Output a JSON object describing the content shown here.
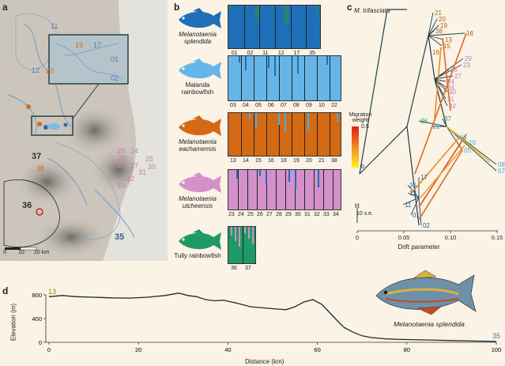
{
  "panels": {
    "a": "a",
    "b": "b",
    "c": "c",
    "d": "d"
  },
  "map": {
    "scale_ticks": [
      "0",
      "10",
      "20 km"
    ],
    "site_labels": [
      {
        "text": "11",
        "color": "#4a7fb5"
      },
      {
        "text": "12",
        "color": "#4a7fb5"
      },
      {
        "text": "20",
        "color": "#d06a1c"
      },
      {
        "text": "37",
        "color": "#333333"
      },
      {
        "text": "36",
        "color": "#333333"
      },
      {
        "text": "35",
        "color": "#3a5f86"
      },
      {
        "text": "29",
        "color": "#c779b5"
      },
      {
        "text": "24",
        "color": "#c779b5"
      },
      {
        "text": "26",
        "color": "#c779b5"
      },
      {
        "text": "25",
        "color": "#c779b5"
      },
      {
        "text": "28",
        "color": "#c779b5"
      },
      {
        "text": "27",
        "color": "#c779b5"
      },
      {
        "text": "30",
        "color": "#c779b5"
      },
      {
        "text": "31",
        "color": "#c779b5"
      },
      {
        "text": "32",
        "color": "#c779b5"
      },
      {
        "text": "33",
        "color": "#c779b5"
      },
      {
        "text": "38",
        "color": "#d06a1c"
      }
    ],
    "inset_labels": [
      {
        "text": "19",
        "color": "#d06a1c"
      },
      {
        "text": "17",
        "color": "#4a7fb5"
      },
      {
        "text": "01",
        "color": "#4a7fb5"
      },
      {
        "text": "02",
        "color": "#4a7fb5"
      }
    ]
  },
  "species": [
    {
      "name": "Melanotaenia splendida",
      "italic": true,
      "color": "#1f6fb8",
      "ticks": [
        "01",
        "02",
        "11",
        "12",
        "17",
        "35"
      ]
    },
    {
      "name": "Malanda rainbowfish",
      "italic": false,
      "color": "#66b5e8",
      "ticks": [
        "03",
        "04",
        "05",
        "06",
        "07",
        "08",
        "09",
        "10",
        "22"
      ]
    },
    {
      "name": "Melanotaenia eachamensis",
      "italic": true,
      "color": "#d46a14",
      "ticks": [
        "13",
        "14",
        "15",
        "16",
        "18",
        "19",
        "20",
        "21",
        "38"
      ]
    },
    {
      "name": "Melanotaenia utcheensis",
      "italic": true,
      "color": "#d490c8",
      "ticks": [
        "23",
        "24",
        "25",
        "26",
        "27",
        "28",
        "29",
        "30",
        "31",
        "32",
        "33",
        "34"
      ]
    },
    {
      "name": "Tully rainbowfish",
      "italic": false,
      "color": "#1e9a66",
      "ticks": [
        "36",
        "37"
      ]
    }
  ],
  "tree": {
    "outgroup": "M. trifasciata",
    "migration_title": "Migration weight",
    "migration_max": "0.5",
    "migration_min": "0",
    "drift_label": "H",
    "se_label": "10 s.e.",
    "xlabel": "Drift parameter",
    "xticks": [
      "0",
      "0.05",
      "0.10",
      "0.15"
    ],
    "tips": [
      {
        "text": "21",
        "color": "#c06010"
      },
      {
        "text": "20",
        "color": "#c06010"
      },
      {
        "text": "19",
        "color": "#c06010"
      },
      {
        "text": "38",
        "color": "#c06010"
      },
      {
        "text": "18",
        "color": "#c06010"
      },
      {
        "text": "13",
        "color": "#c06010"
      },
      {
        "text": "15",
        "color": "#c06010"
      },
      {
        "text": "16",
        "color": "#c06010"
      },
      {
        "text": "29",
        "color": "#c779b5"
      },
      {
        "text": "23",
        "color": "#c779b5"
      },
      {
        "text": "26",
        "color": "#c779b5"
      },
      {
        "text": "27",
        "color": "#c779b5"
      },
      {
        "text": "24",
        "color": "#c779b5"
      },
      {
        "text": "34",
        "color": "#c779b5"
      },
      {
        "text": "30",
        "color": "#c779b5"
      },
      {
        "text": "31",
        "color": "#c779b5"
      },
      {
        "text": "32",
        "color": "#c779b5"
      },
      {
        "text": "37",
        "color": "#1e9a66"
      },
      {
        "text": "36",
        "color": "#1e9a66"
      },
      {
        "text": "22",
        "color": "#4aa5d8"
      },
      {
        "text": "04",
        "color": "#4aa5d8"
      },
      {
        "text": "10",
        "color": "#4aa5d8"
      },
      {
        "text": "05",
        "color": "#4aa5d8"
      },
      {
        "text": "08",
        "color": "#4aa5d8"
      },
      {
        "text": "07",
        "color": "#4aa5d8"
      },
      {
        "text": "17",
        "color": "#1f5f98"
      },
      {
        "text": "35",
        "color": "#1f5f98"
      },
      {
        "text": "12",
        "color": "#1f5f98"
      },
      {
        "text": "11",
        "color": "#1f5f98"
      },
      {
        "text": "01",
        "color": "#1f5f98"
      },
      {
        "text": "02",
        "color": "#1f5f98"
      }
    ]
  },
  "profile": {
    "ylabel": "Elevation (m)",
    "xlabel": "Distance (km)",
    "start_site": "13",
    "end_site": "35",
    "start_color": "#b07a1a",
    "end_color": "#3a7fb0",
    "fish_caption": "Melanotaenia splendida"
  },
  "chart_data": {
    "type": "line",
    "title": "",
    "xlabel": "Distance (km)",
    "ylabel": "Elevation (m)",
    "xlim": [
      0,
      100
    ],
    "ylim": [
      0,
      800
    ],
    "xticks": [
      0,
      20,
      40,
      60,
      80,
      100
    ],
    "yticks": [
      0,
      400,
      800
    ],
    "x": [
      0,
      3,
      6,
      10,
      14,
      18,
      22,
      26,
      29,
      31,
      33,
      35,
      37,
      39,
      42,
      45,
      48,
      51,
      53,
      55,
      57,
      59,
      61,
      62,
      63,
      64,
      65,
      66,
      68,
      70,
      72,
      75,
      78,
      81,
      84,
      87,
      90,
      93,
      96,
      100
    ],
    "y": [
      770,
      790,
      770,
      760,
      750,
      745,
      760,
      790,
      830,
      790,
      770,
      720,
      700,
      710,
      660,
      600,
      580,
      560,
      550,
      600,
      680,
      720,
      640,
      560,
      480,
      400,
      320,
      250,
      170,
      110,
      80,
      60,
      50,
      45,
      40,
      35,
      30,
      25,
      20,
      15
    ]
  }
}
